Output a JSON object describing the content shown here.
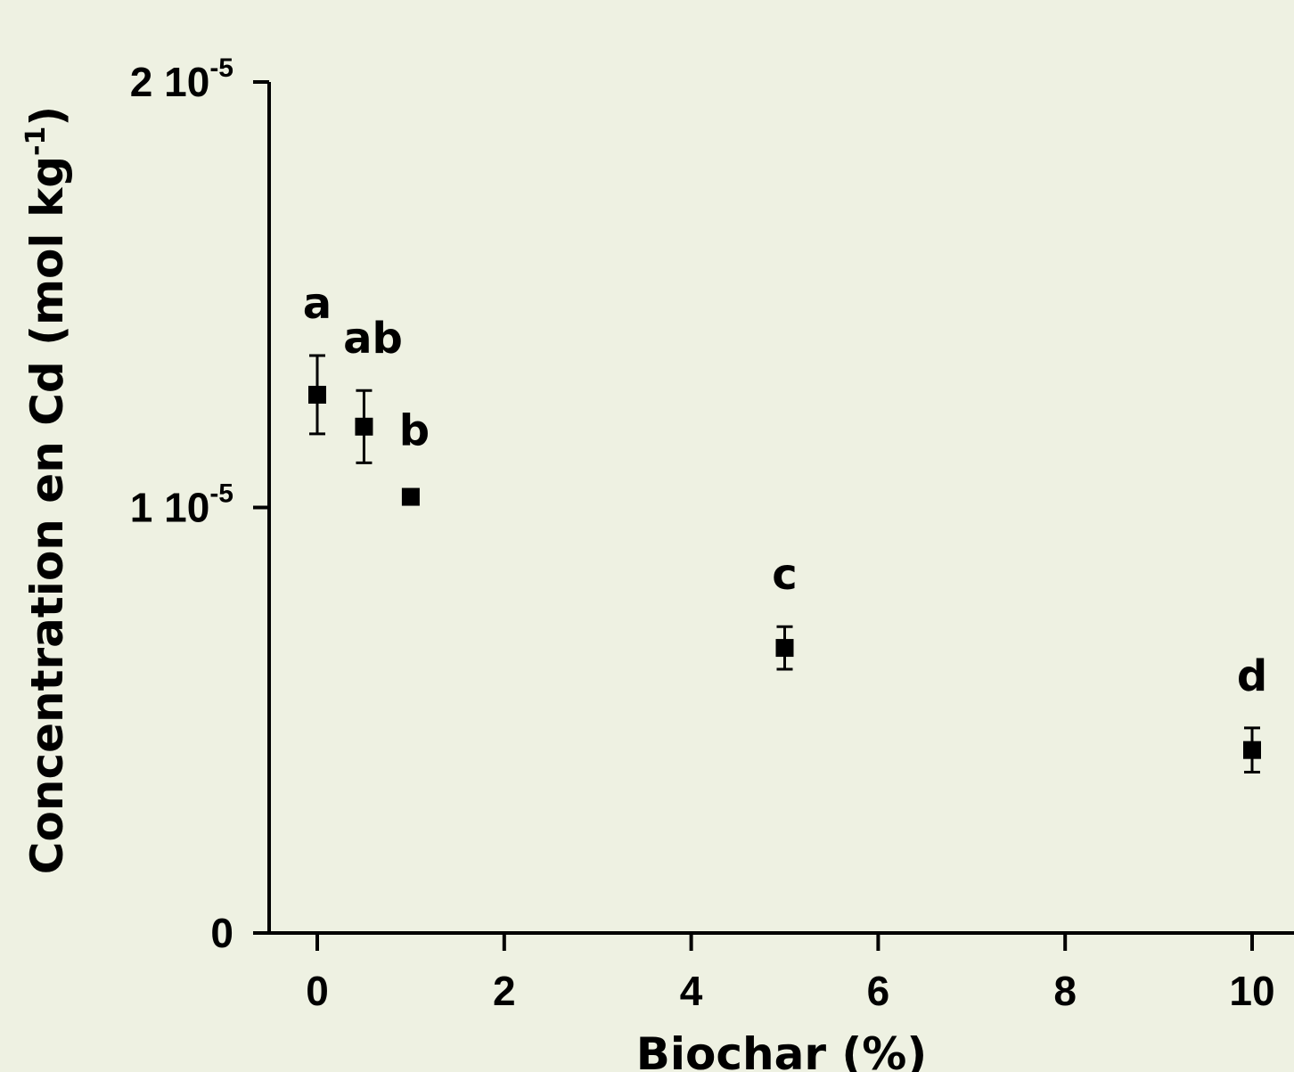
{
  "chart_data": {
    "type": "scatter",
    "xlabel": "Biochar (%)",
    "ylabel_main": "Concentration en Cd (mol kg",
    "ylabel_exp": "-1",
    "ylabel_close": ")",
    "xlim": [
      -0.5,
      10.2
    ],
    "ylim": [
      0,
      2e-05
    ],
    "x_ticks": [
      {
        "value": 0,
        "label": "0"
      },
      {
        "value": 2,
        "label": "2"
      },
      {
        "value": 4,
        "label": "4"
      },
      {
        "value": 6,
        "label": "6"
      },
      {
        "value": 8,
        "label": "8"
      },
      {
        "value": 10,
        "label": "10"
      }
    ],
    "y_ticks": [
      {
        "value": 0,
        "mantissa": "0",
        "base": "",
        "exp": ""
      },
      {
        "value": 1e-05,
        "mantissa": "1",
        "base": "10",
        "exp": "-5"
      },
      {
        "value": 2e-05,
        "mantissa": "2",
        "base": "10",
        "exp": "-5"
      }
    ],
    "points": [
      {
        "x": 0,
        "y": 1.265e-05,
        "err": 9.2e-07,
        "group": "a"
      },
      {
        "x": 0.5,
        "y": 1.19e-05,
        "err": 8.5e-07,
        "group": "ab"
      },
      {
        "x": 1,
        "y": 1.025e-05,
        "err": 0,
        "group": "b"
      },
      {
        "x": 5,
        "y": 6.7e-06,
        "err": 5e-07,
        "group": "c"
      },
      {
        "x": 10,
        "y": 4.3e-06,
        "err": 5.2e-07,
        "group": "d"
      }
    ],
    "marker": "square",
    "color": "#000000",
    "background": "#eef1e2",
    "grid": false
  }
}
